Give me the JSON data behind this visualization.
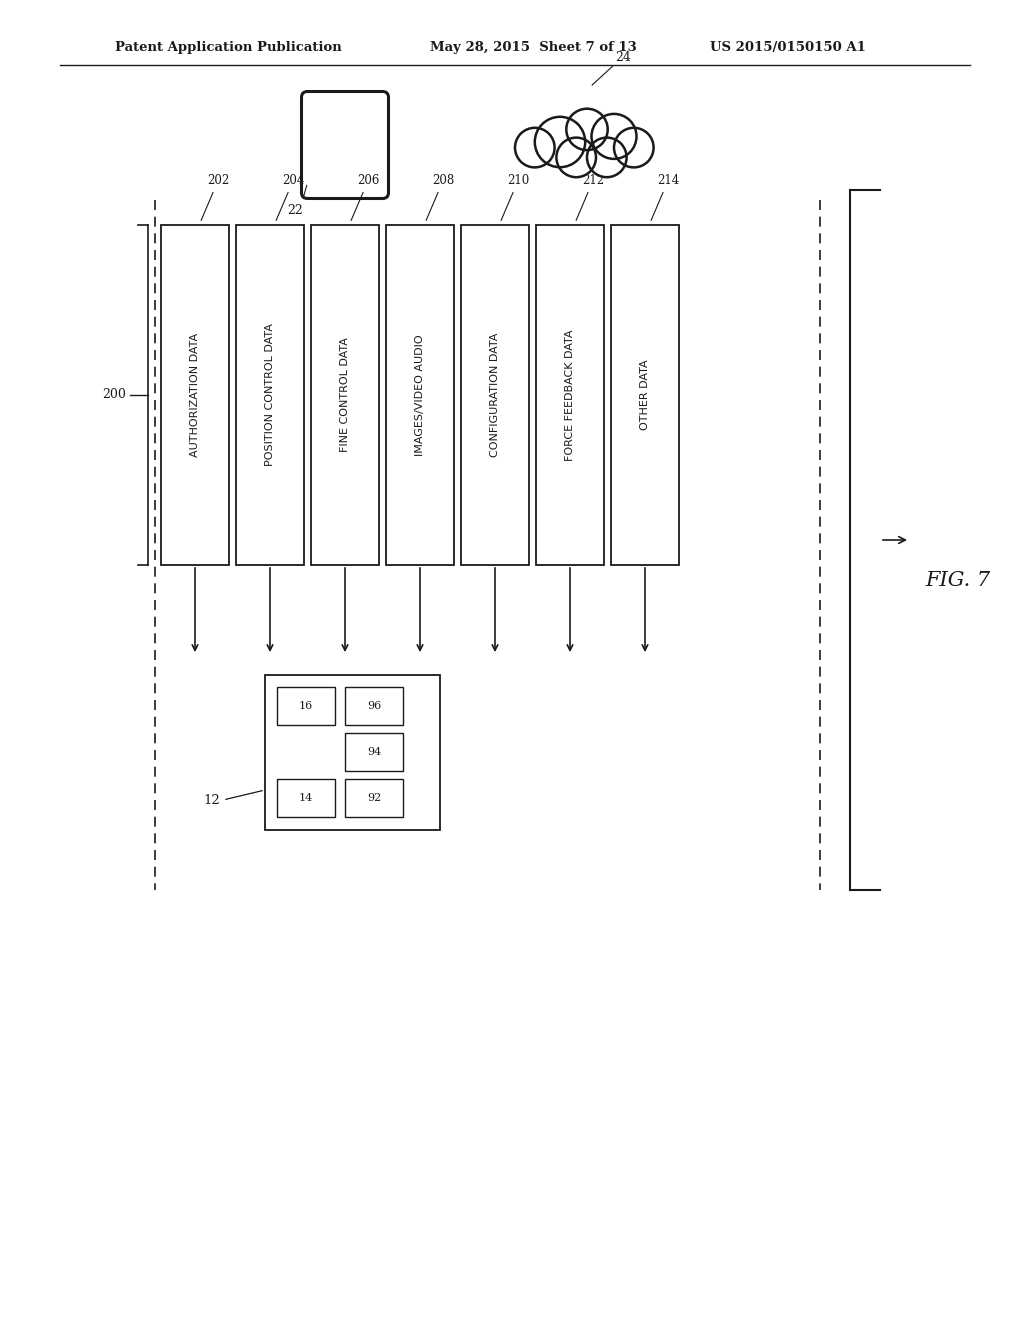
{
  "header_left": "Patent Application Publication",
  "header_mid": "May 28, 2015  Sheet 7 of 13",
  "header_right": "US 2015/0150150 A1",
  "fig_label": "FIG. 7",
  "label_200": "200",
  "label_12": "12",
  "label_22": "22",
  "label_24": "24",
  "boxes": [
    {
      "label": "202",
      "text": "AUTHORIZATION DATA"
    },
    {
      "label": "204",
      "text": "POSITION CONTROL DATA"
    },
    {
      "label": "206",
      "text": "FINE CONTROL DATA"
    },
    {
      "label": "208",
      "text": "IMAGES/VIDEO AUDIO"
    },
    {
      "label": "210",
      "text": "CONFIGURATION DATA"
    },
    {
      "label": "212",
      "text": "FORCE FEEDBACK DATA"
    },
    {
      "label": "214",
      "text": "OTHER DATA"
    }
  ],
  "sub_boxes_12": [
    {
      "label": "16",
      "col": 0,
      "row": 0
    },
    {
      "label": "96",
      "col": 1,
      "row": 0
    },
    {
      "label": "94",
      "col": 1,
      "row": 1
    },
    {
      "label": "14",
      "col": 0,
      "row": 2
    },
    {
      "label": "92",
      "col": 1,
      "row": 2
    }
  ],
  "bg_color": "#ffffff",
  "line_color": "#1a1a1a",
  "text_color": "#1a1a1a"
}
